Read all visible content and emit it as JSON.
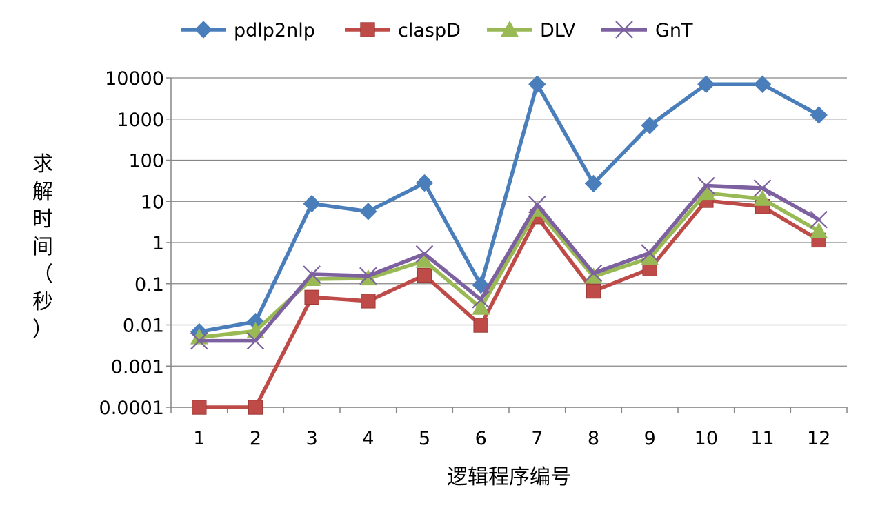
{
  "chart_data": {
    "type": "line",
    "title": "",
    "xlabel": "逻辑程序编号",
    "ylabel": "求解时间（秒）",
    "ylabel_chars": [
      "求",
      "解",
      "时",
      "间",
      "（",
      "秒",
      "）"
    ],
    "y_scale": "log",
    "ylim": [
      0.0001,
      10000
    ],
    "y_ticks": [
      "10000",
      "1000",
      "100",
      "10",
      "1",
      "0.1",
      "0.01",
      "0.001",
      "0.0001"
    ],
    "y_tick_values": [
      10000,
      1000,
      100,
      10,
      1,
      0.1,
      0.01,
      0.001,
      0.0001
    ],
    "categories": [
      "1",
      "2",
      "3",
      "4",
      "5",
      "6",
      "7",
      "8",
      "9",
      "10",
      "11",
      "12"
    ],
    "grid": true,
    "legend_position": "top",
    "series": [
      {
        "name": "pdlp2nlp",
        "color": "#4a7ebb",
        "marker": "diamond",
        "values": [
          0.0068,
          0.012,
          8.8,
          5.7,
          28,
          0.093,
          7000,
          27,
          700,
          7000,
          7000,
          1250
        ]
      },
      {
        "name": "claspD",
        "color": "#be4b48",
        "marker": "square",
        "values": [
          0.0001,
          0.0001,
          0.047,
          0.038,
          0.16,
          0.0098,
          4.2,
          0.066,
          0.23,
          10.5,
          7.5,
          1.15
        ]
      },
      {
        "name": "DLV",
        "color": "#98b954",
        "marker": "triangle",
        "values": [
          0.005,
          0.0071,
          0.13,
          0.135,
          0.36,
          0.026,
          6.2,
          0.15,
          0.42,
          16,
          11.5,
          1.9
        ]
      },
      {
        "name": "GnT",
        "color": "#7d60a0",
        "marker": "x",
        "values": [
          0.0041,
          0.0041,
          0.17,
          0.155,
          0.53,
          0.041,
          8.4,
          0.18,
          0.56,
          24,
          21,
          3.6
        ]
      }
    ]
  }
}
